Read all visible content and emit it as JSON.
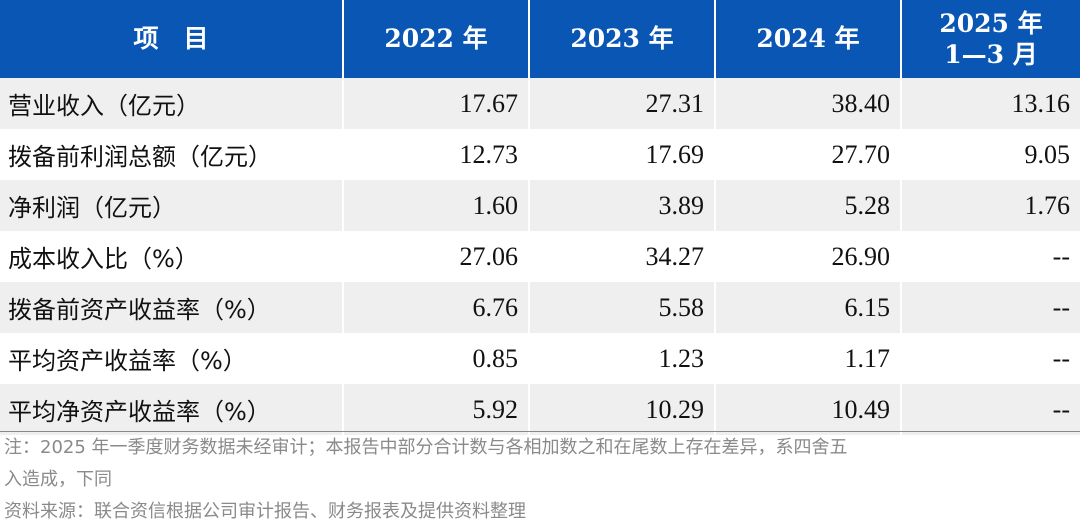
{
  "table": {
    "headers": {
      "item": "项　目",
      "y2022": "2022 年",
      "y2023": "2023 年",
      "y2024": "2024 年",
      "y2025_line1": "2025 年",
      "y2025_line2": "1—3 月"
    },
    "rows": [
      {
        "label": "营业收入（亿元）",
        "v2022": "17.67",
        "v2023": "27.31",
        "v2024": "38.40",
        "v2025": "13.16"
      },
      {
        "label": "拨备前利润总额（亿元）",
        "v2022": "12.73",
        "v2023": "17.69",
        "v2024": "27.70",
        "v2025": "9.05"
      },
      {
        "label": "净利润（亿元）",
        "v2022": "1.60",
        "v2023": "3.89",
        "v2024": "5.28",
        "v2025": "1.76"
      },
      {
        "label": "成本收入比（%）",
        "v2022": "27.06",
        "v2023": "34.27",
        "v2024": "26.90",
        "v2025": "--"
      },
      {
        "label": "拨备前资产收益率（%）",
        "v2022": "6.76",
        "v2023": "5.58",
        "v2024": "6.15",
        "v2025": "--"
      },
      {
        "label": "平均资产收益率（%）",
        "v2022": "0.85",
        "v2023": "1.23",
        "v2024": "1.17",
        "v2025": "--"
      },
      {
        "label": "平均净资产收益率（%）",
        "v2022": "5.92",
        "v2023": "10.29",
        "v2024": "10.49",
        "v2025": "--"
      }
    ]
  },
  "notes": {
    "note_line1": "注：2025 年一季度财务数据未经审计；本报告中部分合计数与各相加数之和在尾数上存在差异，系四舍五",
    "note_line2": "入造成，下同",
    "source": "资料来源：联合资信根据公司审计报告、财务报表及提供资料整理"
  }
}
